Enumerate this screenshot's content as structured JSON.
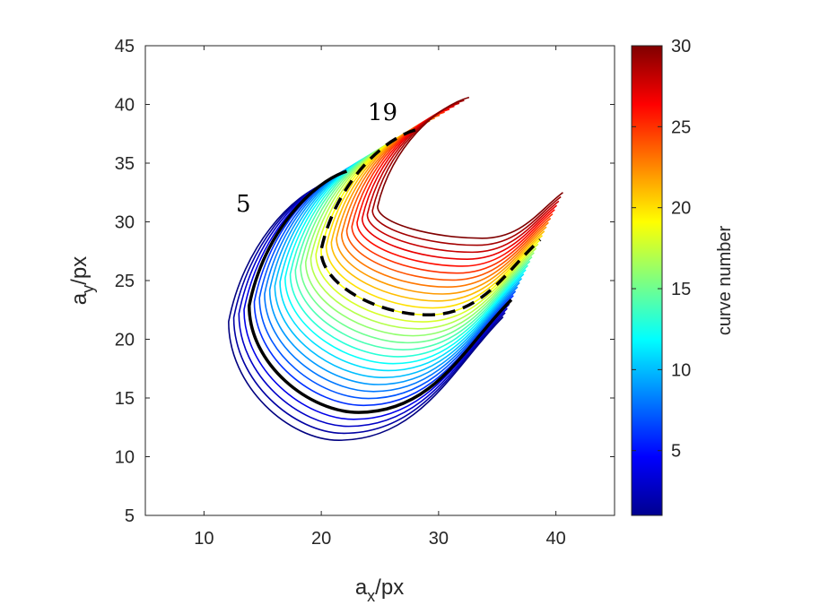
{
  "chart_data": {
    "type": "line",
    "xlabel": "a_x/px",
    "ylabel": "a_y/px",
    "xlim": [
      5,
      45
    ],
    "ylim": [
      5,
      45
    ],
    "xticks": [
      10,
      20,
      30,
      40
    ],
    "yticks": [
      5,
      10,
      15,
      20,
      25,
      30,
      35,
      40,
      45
    ],
    "colorbar": {
      "label": "curve number",
      "range": [
        1,
        30
      ],
      "ticks": [
        5,
        10,
        15,
        20,
        25,
        30
      ],
      "colormap": "jet"
    },
    "curve_count": 30,
    "highlighted_curves": [
      {
        "number": 5,
        "style": "solid-black"
      },
      {
        "number": 19,
        "style": "dashed-black"
      }
    ],
    "annotations": [
      "5",
      "19"
    ],
    "tip_start": {
      "x": 20.5,
      "y": 33.3
    },
    "tip_end": {
      "x": 32.6,
      "y": 40.6
    },
    "tail_start": {
      "x": 35.5,
      "y": 21.9
    },
    "tail_end": {
      "x": 40.6,
      "y": 32.5
    },
    "outer_left": {
      "x": 12.1,
      "y": 21.5
    },
    "outer_bottom": {
      "x": 21.5,
      "y": 11.4
    },
    "inner_left": {
      "x": 24.8,
      "y": 31.3
    },
    "inner_bottom": {
      "x": 33.7,
      "y": 28.6
    }
  }
}
